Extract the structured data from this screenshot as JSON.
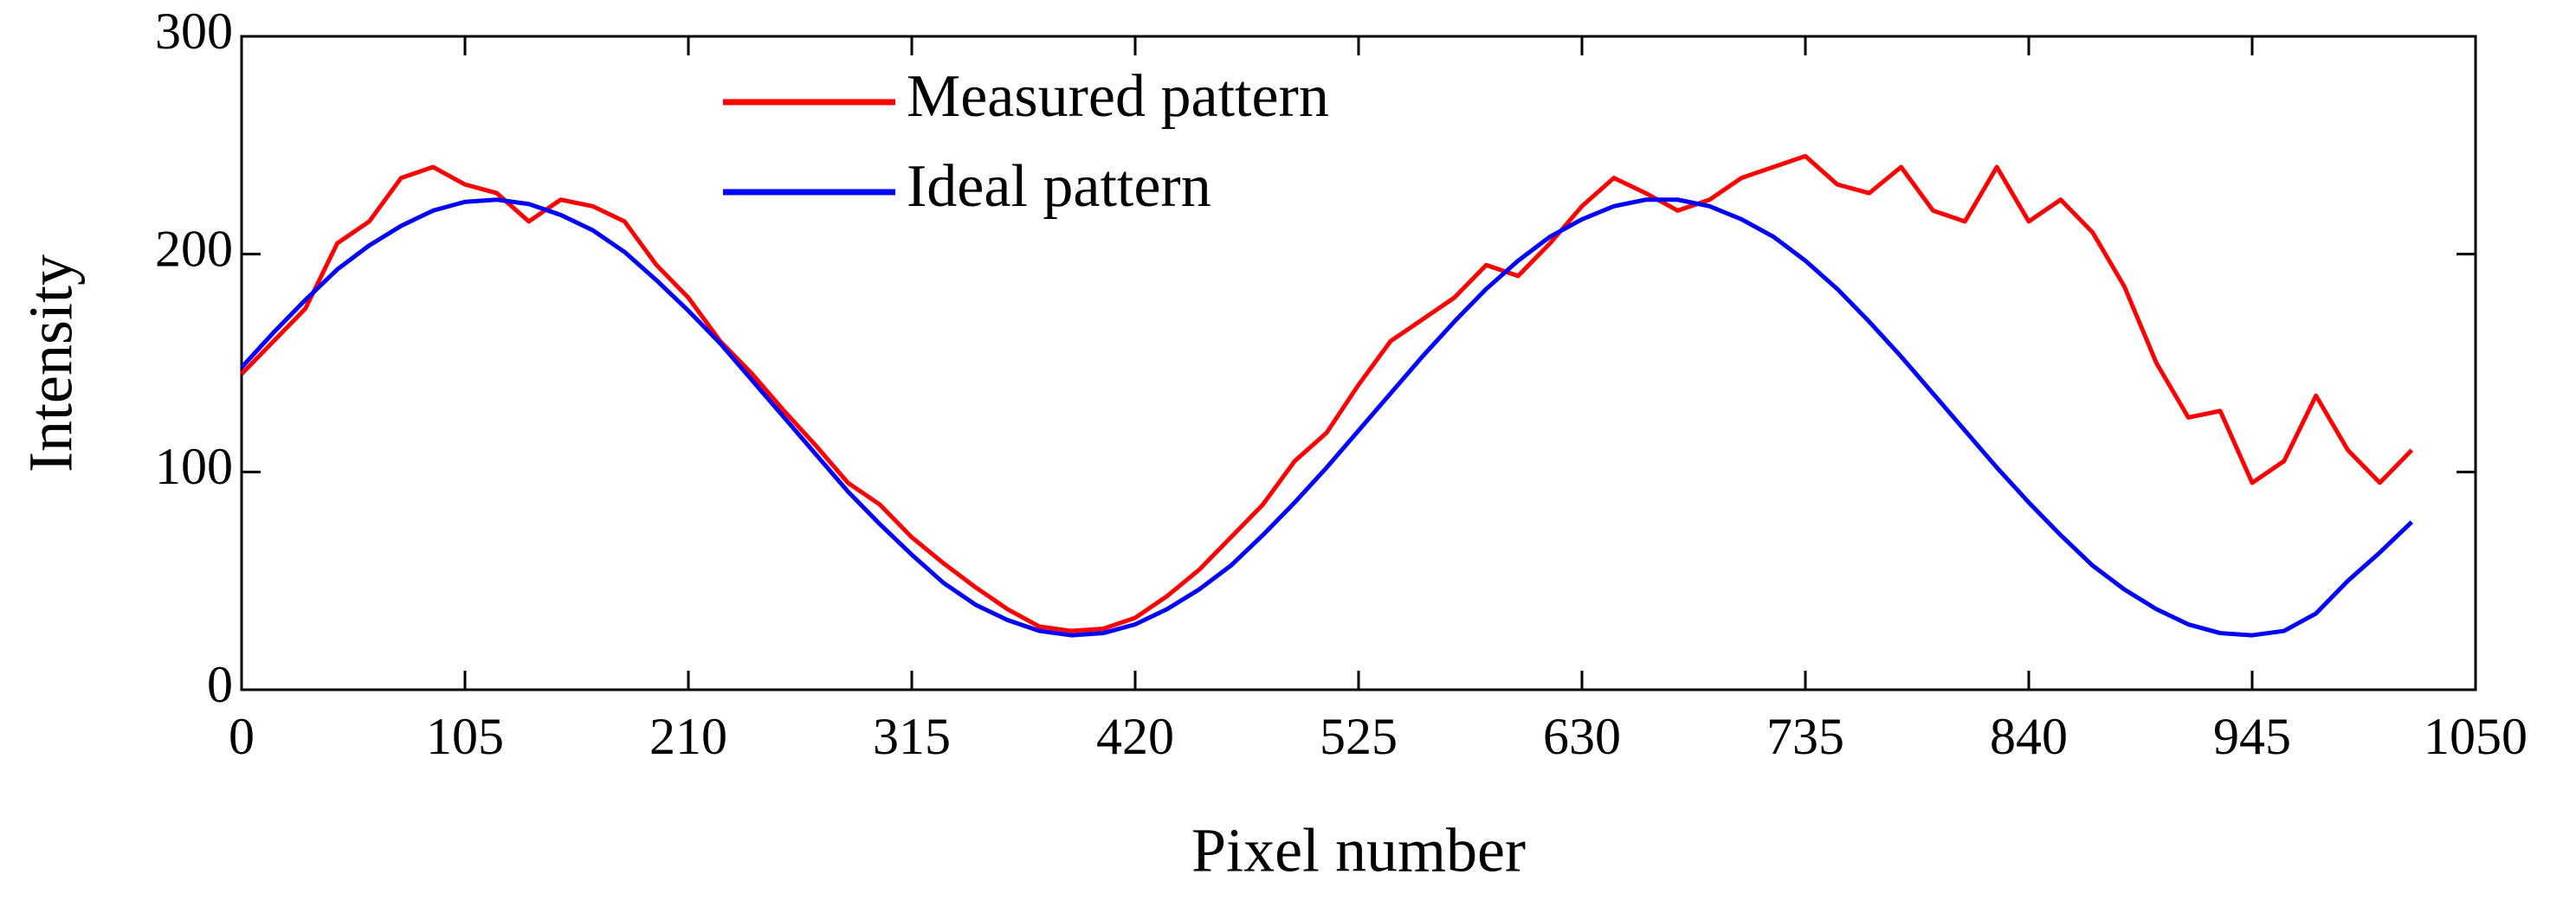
{
  "chart_data": {
    "type": "line",
    "x_label": "Pixel number",
    "y_label": "Intensity",
    "x": [
      0,
      15,
      30,
      45,
      60,
      75,
      90,
      105,
      120,
      135,
      150,
      165,
      180,
      195,
      210,
      225,
      240,
      255,
      270,
      285,
      300,
      315,
      330,
      345,
      360,
      375,
      390,
      405,
      420,
      435,
      450,
      465,
      480,
      495,
      510,
      525,
      540,
      555,
      570,
      585,
      600,
      615,
      630,
      645,
      660,
      675,
      690,
      705,
      720,
      735,
      750,
      765,
      780,
      795,
      810,
      825,
      840,
      855,
      870,
      885,
      900,
      915,
      930,
      945,
      960,
      975,
      990,
      1005,
      1020
    ],
    "series": [
      {
        "name": "Measured pattern",
        "color": "#ff0000",
        "values": [
          145,
          160,
          175,
          205,
          215,
          235,
          240,
          232,
          228,
          215,
          225,
          222,
          215,
          195,
          180,
          160,
          145,
          128,
          112,
          95,
          85,
          70,
          58,
          47,
          37,
          29,
          27,
          28,
          33,
          43,
          55,
          70,
          85,
          105,
          118,
          140,
          160,
          170,
          180,
          195,
          190,
          205,
          222,
          235,
          228,
          220,
          225,
          235,
          240,
          245,
          232,
          228,
          240,
          220,
          215,
          240,
          215,
          225,
          210,
          185,
          150,
          125,
          128,
          95,
          105,
          135,
          110,
          95,
          110
        ]
      },
      {
        "name": "Ideal pattern",
        "color": "#0000ff",
        "values": [
          148,
          164,
          179,
          193,
          204,
          213,
          220,
          224,
          225,
          223,
          218,
          211,
          201,
          188,
          174,
          159,
          142,
          125,
          108,
          91,
          76,
          62,
          49,
          39,
          32,
          27,
          25,
          26,
          30,
          37,
          46,
          57,
          71,
          86,
          102,
          119,
          136,
          153,
          169,
          184,
          197,
          208,
          216,
          222,
          225,
          225,
          222,
          216,
          208,
          197,
          184,
          169,
          153,
          136,
          119,
          102,
          86,
          71,
          57,
          46,
          37,
          30,
          26,
          25,
          27,
          35,
          50,
          63,
          77
        ]
      }
    ],
    "xlim": [
      0,
      1050
    ],
    "xticks": [
      0,
      105,
      210,
      315,
      420,
      525,
      630,
      735,
      840,
      945,
      1050
    ],
    "ylim": [
      0,
      300
    ],
    "yticks": [
      0,
      100,
      200,
      300
    ]
  }
}
